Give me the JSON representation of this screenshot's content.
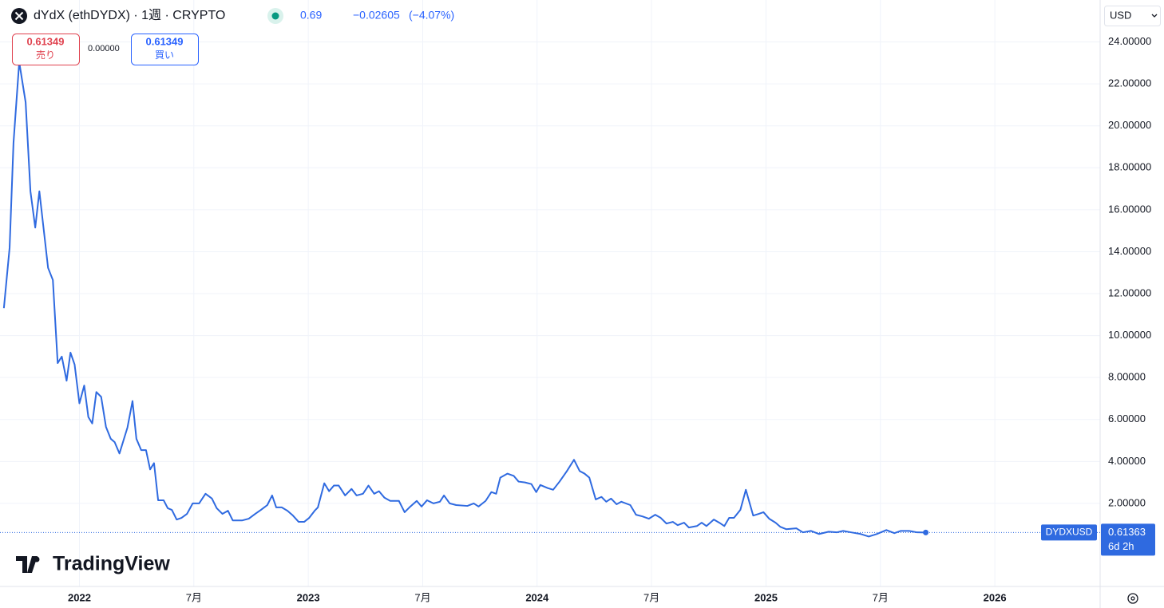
{
  "header": {
    "title": "dYdX (ethDYDX) · 1週 · CRYPTO",
    "change": "−0.02605",
    "change_percent": "(−4.07%)"
  },
  "order": {
    "sell_price": "0.61349",
    "sell_label": "売り",
    "spread": "0.00000",
    "buy_price": "0.61349",
    "buy_label": "買い"
  },
  "currency": "USD",
  "countdown": "6d 2h",
  "logo": "TradingView",
  "chart_data": {
    "type": "line",
    "x": [
      2021.67,
      2021.695,
      2021.712,
      2021.737,
      2021.765,
      2021.786,
      2021.807,
      2021.825,
      2021.863,
      2021.884,
      2021.905,
      2021.923,
      2021.944,
      2021.961,
      2021.979,
      2022.0,
      2022.021,
      2022.039,
      2022.056,
      2022.074,
      2022.095,
      2022.116,
      2022.137,
      2022.154,
      2022.175,
      2022.21,
      2022.232,
      2022.249,
      2022.27,
      2022.291,
      2022.309,
      2022.326,
      2022.344,
      2022.368,
      2022.386,
      2022.404,
      2022.425,
      2022.446,
      2022.47,
      2022.495,
      2022.523,
      2022.551,
      2022.579,
      2022.6,
      2022.625,
      2022.649,
      2022.67,
      2022.712,
      2022.74,
      2022.768,
      2022.793,
      2022.821,
      2022.842,
      2022.86,
      2022.884,
      2022.909,
      2022.933,
      2022.958,
      2022.982,
      2023.004,
      2023.028,
      2023.042,
      2023.07,
      2023.091,
      2023.112,
      2023.133,
      2023.161,
      2023.189,
      2023.211,
      2023.239,
      2023.263,
      2023.288,
      2023.309,
      2023.333,
      2023.358,
      2023.396,
      2023.421,
      2023.442,
      2023.474,
      2023.495,
      2023.519,
      2023.547,
      2023.575,
      2023.593,
      2023.618,
      2023.646,
      2023.695,
      2023.723,
      2023.744,
      2023.775,
      2023.8,
      2023.821,
      2023.839,
      2023.87,
      2023.898,
      2023.919,
      2023.947,
      2023.975,
      2023.996,
      2024.014,
      2024.046,
      2024.07,
      2024.098,
      2024.13,
      2024.161,
      2024.186,
      2024.207,
      2024.228,
      2024.256,
      2024.281,
      2024.302,
      2024.323,
      2024.347,
      2024.368,
      2024.407,
      2024.432,
      2024.46,
      2024.488,
      2024.516,
      2024.54,
      2024.565,
      2024.593,
      2024.614,
      2024.642,
      2024.663,
      2024.698,
      2024.719,
      2024.74,
      2024.772,
      2024.796,
      2024.818,
      2024.839,
      2024.86,
      2024.888,
      2024.912,
      2024.944,
      2024.968,
      2024.989,
      2025.014,
      2025.042,
      2025.063,
      2025.088,
      2025.133,
      2025.161,
      2025.196,
      2025.232,
      2025.274,
      2025.309,
      2025.337,
      2025.372,
      2025.414,
      2025.449,
      2025.484,
      2025.526,
      2025.561,
      2025.589,
      2025.625,
      2025.66,
      2025.698
    ],
    "series": [
      {
        "name": "DYDXUSD",
        "color": "#2f6ae0",
        "values": [
          11.31,
          14.19,
          19.19,
          23.04,
          21.12,
          16.88,
          15.15,
          16.88,
          13.23,
          12.65,
          8.69,
          9.0,
          7.85,
          9.19,
          8.62,
          6.77,
          7.62,
          6.12,
          5.81,
          7.31,
          7.08,
          5.65,
          5.08,
          4.92,
          4.38,
          5.62,
          6.88,
          5.08,
          4.54,
          4.54,
          3.62,
          3.92,
          2.15,
          2.15,
          1.77,
          1.69,
          1.23,
          1.31,
          1.5,
          2.0,
          2.0,
          2.46,
          2.23,
          1.77,
          1.5,
          1.65,
          1.19,
          1.19,
          1.27,
          1.5,
          1.69,
          1.92,
          2.38,
          1.81,
          1.81,
          1.65,
          1.42,
          1.12,
          1.12,
          1.31,
          1.65,
          1.81,
          2.96,
          2.58,
          2.85,
          2.85,
          2.38,
          2.69,
          2.38,
          2.46,
          2.85,
          2.46,
          2.58,
          2.27,
          2.12,
          2.12,
          1.58,
          1.81,
          2.12,
          1.85,
          2.15,
          2.0,
          2.08,
          2.38,
          2.0,
          1.92,
          1.88,
          2.0,
          1.85,
          2.12,
          2.54,
          2.46,
          3.23,
          3.42,
          3.31,
          3.04,
          3.0,
          2.92,
          2.54,
          2.88,
          2.73,
          2.65,
          3.04,
          3.54,
          4.08,
          3.54,
          3.42,
          3.23,
          2.19,
          2.31,
          2.08,
          2.23,
          1.96,
          2.08,
          1.92,
          1.46,
          1.38,
          1.27,
          1.46,
          1.31,
          1.04,
          1.12,
          0.96,
          1.08,
          0.85,
          0.92,
          1.08,
          0.92,
          1.23,
          1.08,
          0.92,
          1.31,
          1.31,
          1.69,
          2.65,
          1.42,
          1.5,
          1.58,
          1.27,
          1.08,
          0.88,
          0.77,
          0.81,
          0.62,
          0.69,
          0.54,
          0.65,
          0.62,
          0.69,
          0.62,
          0.54,
          0.42,
          0.54,
          0.73,
          0.58,
          0.69,
          0.69,
          0.62,
          0.61363
        ]
      }
    ],
    "xlim": [
      2021.653,
      2026.46
    ],
    "xticks": [
      2022,
      {
        "value": 2022.5,
        "label": "7月"
      },
      2023,
      {
        "value": 2023.5,
        "label": "7月"
      },
      2024,
      {
        "value": 2024.5,
        "label": "7月"
      },
      2025,
      {
        "value": 2025.5,
        "label": "7月"
      },
      2026
    ],
    "ylim": [
      -1.96,
      26
    ],
    "yticks": [
      {
        "value": 2,
        "label": "2.00000"
      },
      {
        "value": 4,
        "label": "4.00000"
      },
      {
        "value": 6,
        "label": "6.00000"
      },
      {
        "value": 8,
        "label": "8.00000"
      },
      {
        "value": 10,
        "label": "10.00000"
      },
      {
        "value": 12,
        "label": "12.00000"
      },
      {
        "value": 14,
        "label": "14.00000"
      },
      {
        "value": 16,
        "label": "16.00000"
      },
      {
        "value": 18,
        "label": "18.00000"
      },
      {
        "value": 20,
        "label": "20.00000"
      },
      {
        "value": 22,
        "label": "22.00000"
      },
      {
        "value": 24,
        "label": "24.00000"
      }
    ],
    "grid": true
  }
}
